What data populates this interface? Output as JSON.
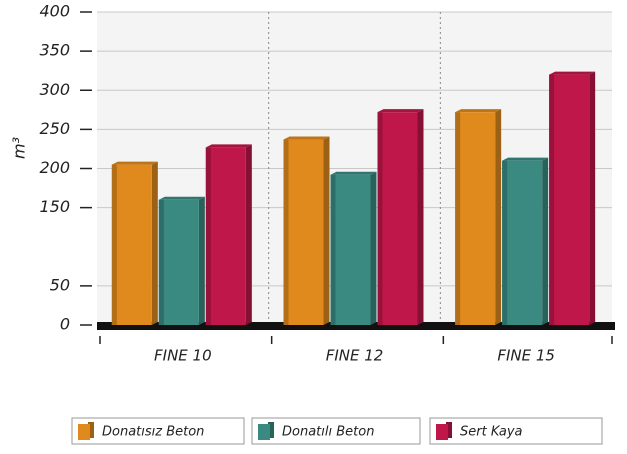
{
  "chart_data": {
    "type": "bar",
    "y_label": "m³",
    "categories": [
      "FINE 10",
      "FINE 12",
      "FINE 15"
    ],
    "series": [
      {
        "name": "Donatısız Beton",
        "color": "#e08a1e",
        "values": [
          205,
          237,
          272
        ]
      },
      {
        "name": "Donatılı Beton",
        "color": "#3a8a82",
        "values": [
          160,
          192,
          210
        ]
      },
      {
        "name": "Sert Kaya",
        "color": "#c0174a",
        "values": [
          227,
          272,
          320
        ]
      }
    ],
    "ylim": [
      0,
      400
    ],
    "yticks": [
      0,
      50,
      150,
      200,
      250,
      300,
      350,
      400
    ],
    "grid": true
  }
}
